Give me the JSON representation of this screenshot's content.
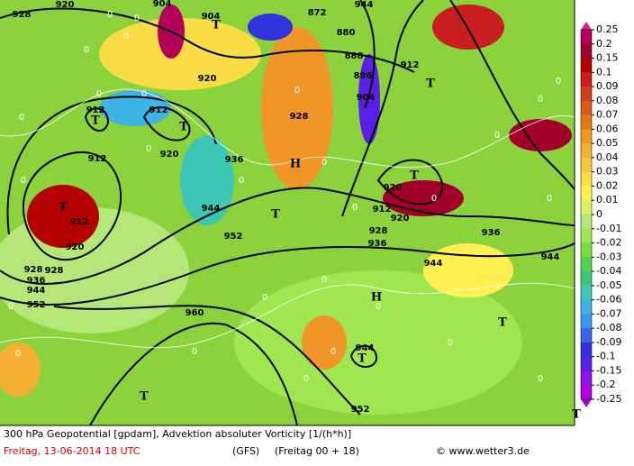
{
  "map": {
    "contour_labels": [
      "928",
      "920",
      "904",
      "904",
      "872",
      "880",
      "888",
      "896",
      "904",
      "912",
      "912",
      "912",
      "912",
      "912",
      "912",
      "920",
      "920",
      "920",
      "928",
      "936",
      "944",
      "952",
      "920",
      "928",
      "936",
      "944",
      "952",
      "936",
      "944",
      "944",
      "928",
      "936",
      "920",
      "928",
      "944",
      "960",
      "944",
      "952"
    ],
    "vorticity_labels": [
      "0",
      "0",
      "0",
      "0",
      "0",
      "0",
      "0",
      "0",
      "0",
      "0",
      "0",
      "0",
      "0",
      "0",
      "0",
      "0",
      "0",
      "0",
      "0",
      "0",
      "0",
      "0",
      "0",
      "0",
      "0",
      "0",
      "0",
      "0"
    ],
    "pressure_centers": [
      "T",
      "T",
      "T",
      "T",
      "T",
      "T",
      "T",
      "T",
      "T",
      "H",
      "H",
      "T",
      "T"
    ]
  },
  "colorbar": {
    "levels": [
      0.25,
      0.2,
      0.15,
      0.1,
      0.09,
      0.08,
      0.07,
      0.06,
      0.05,
      0.04,
      0.03,
      0.02,
      0.01,
      0,
      -0.01,
      -0.02,
      -0.03,
      -0.04,
      -0.05,
      -0.06,
      -0.07,
      -0.08,
      -0.09,
      -0.1,
      -0.15,
      -0.2,
      -0.25
    ],
    "colors": [
      "#b4005a",
      "#a0002a",
      "#b40000",
      "#c81e1e",
      "#d23c1e",
      "#dc5a14",
      "#e67814",
      "#f09628",
      "#f5af32",
      "#f5c83c",
      "#fadc46",
      "#fff050",
      "#dcf064",
      "#b4e678",
      "#a0e650",
      "#78dc3c",
      "#50d250",
      "#3cc878",
      "#3cc8b4",
      "#3cb4e6",
      "#3c96f0",
      "#3c64f0",
      "#3232dc",
      "#5a1ee6",
      "#8c14e6",
      "#b400e6"
    ]
  },
  "caption": {
    "line1": "300 hPa Geopotential [gpdam], Advektion absoluter Vorticity [1/(h*h)]",
    "date": "Freitag, 13-06-2014   18 UTC",
    "model": "(GFS)",
    "run": "(Freitag 00 + 18)",
    "credit": "© www.wetter3.de"
  }
}
